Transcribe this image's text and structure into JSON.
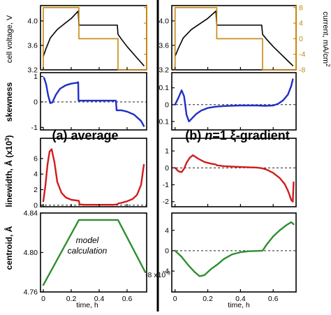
{
  "colors": {
    "voltage": "#000000",
    "current": "#c8870e",
    "skewness": "#1f2fc8",
    "linewidth": "#d21c1c",
    "centroid": "#2f8f2f",
    "divider": "#000000"
  },
  "y_labels": {
    "voltage": "cell voltage, V",
    "current": "current, mA/cm",
    "current_exp": "2",
    "skewness": "skewness",
    "linewidth": "linewidth, Å (x10",
    "linewidth_exp": "3",
    "linewidth_close": ")",
    "centroid": "centroid, Å"
  },
  "panel_labels": {
    "left": "(a) average",
    "right_pre": "(b) ",
    "right_n": "n",
    "right_post": "=1 ξ-gradient"
  },
  "annotations": {
    "model_line1": "model",
    "model_line2": "calculation",
    "right_centroid_multiplier_base": "-8 x10",
    "right_centroid_multiplier_exp": "-3"
  },
  "x_axis": {
    "label": "time, h",
    "ticks": [
      "0",
      "0.2",
      "0.4",
      "0.6"
    ]
  },
  "chart_data": [
    {
      "type": "line",
      "panel": "left-voltage-current",
      "xlim": [
        -0.02,
        0.74
      ],
      "ylim": [
        3.2,
        4.25
      ],
      "yticks": [
        "4.0",
        "3.6",
        "3.2"
      ],
      "y2lim": [
        -8,
        8.5
      ],
      "y2ticks": [
        "8",
        "4",
        "0",
        "-4",
        "-8"
      ],
      "series": [
        {
          "key": "voltage",
          "x": [
            0.0,
            0.02,
            0.05,
            0.1,
            0.15,
            0.2,
            0.25,
            0.255,
            0.3,
            0.4,
            0.5,
            0.53,
            0.535,
            0.56,
            0.6,
            0.65,
            0.7,
            0.72
          ],
          "y": [
            3.42,
            3.55,
            3.72,
            3.86,
            3.95,
            4.04,
            4.16,
            3.93,
            3.93,
            3.93,
            3.93,
            3.93,
            3.78,
            3.7,
            3.58,
            3.45,
            3.32,
            3.27
          ]
        },
        {
          "key": "current",
          "axis": "y2",
          "x": [
            -0.02,
            0.0,
            0.0,
            0.255,
            0.255,
            0.535,
            0.535,
            0.74
          ],
          "y": [
            -8,
            -8,
            8,
            8,
            0,
            0,
            -8,
            -8
          ]
        }
      ]
    },
    {
      "type": "line",
      "panel": "right-voltage-current",
      "xlim": [
        -0.02,
        0.74
      ],
      "ylim": [
        3.2,
        4.25
      ],
      "yticks": [
        "4.0",
        "3.6",
        "3.2"
      ],
      "y2lim": [
        -8,
        8.5
      ],
      "y2ticks": [
        "8",
        "4",
        "0",
        "-4",
        "-8"
      ],
      "series": [
        {
          "key": "voltage",
          "x": [
            0.0,
            0.02,
            0.05,
            0.1,
            0.15,
            0.2,
            0.25,
            0.255,
            0.3,
            0.4,
            0.5,
            0.53,
            0.535,
            0.56,
            0.6,
            0.65,
            0.7,
            0.72
          ],
          "y": [
            3.42,
            3.55,
            3.72,
            3.86,
            3.95,
            4.04,
            4.16,
            3.93,
            3.93,
            3.93,
            3.93,
            3.93,
            3.78,
            3.7,
            3.58,
            3.45,
            3.32,
            3.27
          ]
        },
        {
          "key": "current",
          "axis": "y2",
          "x": [
            -0.02,
            0.0,
            0.0,
            0.255,
            0.255,
            0.535,
            0.535,
            0.74
          ],
          "y": [
            -8,
            -8,
            8,
            8,
            0,
            0,
            -8,
            -8
          ]
        }
      ]
    },
    {
      "type": "line",
      "panel": "left-skewness",
      "xlim": [
        -0.02,
        0.74
      ],
      "ylim": [
        -1.1,
        1.15
      ],
      "yticks": [
        "1",
        "0",
        "-1"
      ],
      "series": [
        {
          "key": "skewness",
          "x": [
            0.005,
            0.02,
            0.035,
            0.05,
            0.065,
            0.09,
            0.12,
            0.16,
            0.2,
            0.24,
            0.25,
            0.252,
            0.26,
            0.3,
            0.4,
            0.5,
            0.52,
            0.525,
            0.53,
            0.56,
            0.6,
            0.65,
            0.7,
            0.72
          ],
          "y": [
            0.95,
            0.7,
            0.25,
            -0.05,
            -0.02,
            0.28,
            0.52,
            0.65,
            0.72,
            0.75,
            0.77,
            0.05,
            0.05,
            0.05,
            0.05,
            0.05,
            0.05,
            -0.33,
            -0.33,
            -0.33,
            -0.38,
            -0.5,
            -0.75,
            -0.95
          ]
        }
      ]
    },
    {
      "type": "line",
      "panel": "right-skewness",
      "xlim": [
        -0.02,
        0.74
      ],
      "ylim": [
        -0.15,
        0.19
      ],
      "yticks": [
        "0.1",
        "0",
        "-0.1"
      ],
      "series": [
        {
          "key": "skewness",
          "x": [
            0.0,
            0.02,
            0.04,
            0.055,
            0.07,
            0.085,
            0.1,
            0.13,
            0.16,
            0.2,
            0.25,
            0.3,
            0.4,
            0.5,
            0.55,
            0.6,
            0.63,
            0.66,
            0.69,
            0.71,
            0.72
          ],
          "y": [
            0.0,
            0.04,
            0.085,
            0.05,
            -0.06,
            -0.1,
            -0.085,
            -0.055,
            -0.035,
            -0.02,
            -0.012,
            -0.008,
            -0.005,
            -0.005,
            -0.007,
            -0.005,
            0.005,
            0.025,
            0.06,
            0.11,
            0.15
          ]
        }
      ]
    },
    {
      "type": "line",
      "panel": "left-linewidth",
      "xlim": [
        -0.02,
        0.74
      ],
      "ylim": [
        -0.2,
        8.6
      ],
      "yticks": [
        "6",
        "4",
        "2",
        "0"
      ],
      "series": [
        {
          "key": "linewidth",
          "x": [
            0.0,
            0.015,
            0.03,
            0.045,
            0.06,
            0.08,
            0.1,
            0.13,
            0.16,
            0.2,
            0.24,
            0.255,
            0.26,
            0.3,
            0.4,
            0.5,
            0.53,
            0.54,
            0.56,
            0.6,
            0.64,
            0.67,
            0.7,
            0.72
          ],
          "y": [
            0.5,
            2.5,
            5.2,
            6.9,
            7.2,
            5.5,
            3.0,
            1.6,
            1.0,
            0.7,
            0.6,
            0.55,
            0.1,
            0.05,
            0.05,
            0.05,
            0.1,
            0.25,
            0.3,
            0.5,
            0.8,
            1.3,
            2.6,
            5.2
          ]
        }
      ]
    },
    {
      "type": "line",
      "panel": "right-linewidth",
      "xlim": [
        -0.02,
        0.74
      ],
      "ylim": [
        -2.3,
        1.75
      ],
      "yticks": [
        "1",
        "0",
        "-1",
        "-2"
      ],
      "series": [
        {
          "key": "linewidth",
          "x": [
            0.0,
            0.02,
            0.04,
            0.055,
            0.07,
            0.09,
            0.11,
            0.14,
            0.18,
            0.22,
            0.25,
            0.255,
            0.3,
            0.4,
            0.5,
            0.53,
            0.56,
            0.6,
            0.64,
            0.67,
            0.69,
            0.7,
            0.71,
            0.72,
            0.725
          ],
          "y": [
            0.0,
            -0.2,
            -0.25,
            -0.05,
            0.3,
            0.6,
            0.75,
            0.55,
            0.35,
            0.25,
            0.2,
            0.15,
            0.1,
            0.05,
            0.02,
            -0.02,
            -0.1,
            -0.3,
            -0.6,
            -0.95,
            -1.35,
            -1.6,
            -1.9,
            -2.0,
            -0.85
          ]
        }
      ]
    },
    {
      "type": "line",
      "panel": "left-centroid",
      "xlim": [
        -0.02,
        0.74
      ],
      "ylim": [
        4.76,
        4.84
      ],
      "yticks": [
        "4.84",
        "4.80",
        "4.76"
      ],
      "series": [
        {
          "key": "centroid",
          "x": [
            0.0,
            0.255,
            0.535,
            0.73
          ],
          "y": [
            4.767,
            4.833,
            4.833,
            4.78
          ]
        }
      ]
    },
    {
      "type": "line",
      "panel": "right-centroid",
      "xlim": [
        -0.02,
        0.74
      ],
      "ylim": [
        -8.1,
        7.4
      ],
      "yticks": [
        "4",
        "0",
        "-4"
      ],
      "series": [
        {
          "key": "centroid",
          "x": [
            0.0,
            0.04,
            0.08,
            0.12,
            0.15,
            0.18,
            0.22,
            0.255,
            0.3,
            0.35,
            0.4,
            0.45,
            0.5,
            0.535,
            0.56,
            0.6,
            0.64,
            0.68,
            0.71,
            0.725
          ],
          "y": [
            0.0,
            -1.2,
            -2.8,
            -4.2,
            -5.0,
            -4.8,
            -3.6,
            -2.8,
            -1.6,
            -0.7,
            -0.3,
            -0.1,
            -0.05,
            0.0,
            1.2,
            2.8,
            4.0,
            5.0,
            5.6,
            5.2
          ]
        }
      ]
    }
  ]
}
